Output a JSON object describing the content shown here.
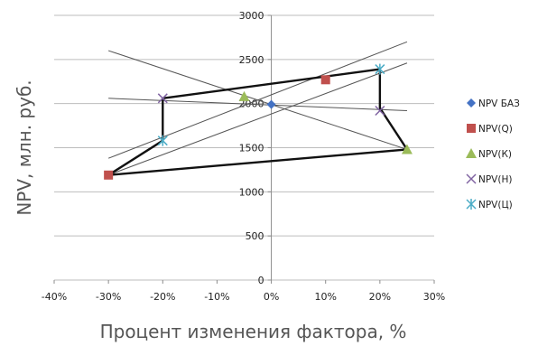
{
  "chart_data": {
    "type": "scatter",
    "xlabel": "Процент изменения фактора, %",
    "ylabel": "NPV, млн. руб.",
    "xlim": [
      -40,
      30
    ],
    "ylim": [
      0,
      3000
    ],
    "x_ticks": [
      -40,
      -30,
      -20,
      -10,
      0,
      10,
      20,
      30
    ],
    "x_tick_labels": [
      "-40%",
      "-30%",
      "-20%",
      "-10%",
      "0%",
      "10%",
      "20%",
      "30%"
    ],
    "y_ticks": [
      0,
      500,
      1000,
      1500,
      2000,
      2500,
      3000
    ],
    "y_tick_labels": [
      "0",
      "500",
      "1000",
      "1500",
      "2000",
      "2500",
      "3000"
    ],
    "grid": "horizontal",
    "legend_position": "right",
    "series": [
      {
        "name": "NPV БАЗ",
        "marker": "diamond",
        "color": "#4472c4",
        "points": [
          [
            0,
            1990
          ]
        ]
      },
      {
        "name": "NPV(Q)",
        "marker": "square",
        "color": "#c0504d",
        "points": [
          [
            -30,
            1190
          ],
          [
            10,
            2270
          ]
        ]
      },
      {
        "name": "NPV(К)",
        "marker": "triangle",
        "color": "#9bbb59",
        "points": [
          [
            -5,
            2080
          ],
          [
            25,
            1480
          ]
        ]
      },
      {
        "name": "NPV(Н)",
        "marker": "x",
        "color": "#8064a2",
        "points": [
          [
            -20,
            2060
          ],
          [
            20,
            1920
          ]
        ]
      },
      {
        "name": "NPV(Ц)",
        "marker": "star",
        "color": "#4bacc6",
        "points": [
          [
            -20,
            1580
          ],
          [
            20,
            2390
          ]
        ]
      }
    ],
    "thin_lines": [
      [
        [
          -30,
          2600
        ],
        [
          25,
          1480
        ]
      ],
      [
        [
          -30,
          2060
        ],
        [
          25,
          1920
        ]
      ],
      [
        [
          -30,
          1380
        ],
        [
          25,
          2700
        ]
      ],
      [
        [
          -30,
          1190
        ],
        [
          25,
          2460
        ]
      ]
    ],
    "envelope": [
      [
        -30,
        1190
      ],
      [
        -20,
        1580
      ],
      [
        -20,
        2060
      ],
      [
        20,
        2390
      ],
      [
        20,
        1950
      ],
      [
        25,
        1480
      ],
      [
        -30,
        1190
      ]
    ]
  }
}
